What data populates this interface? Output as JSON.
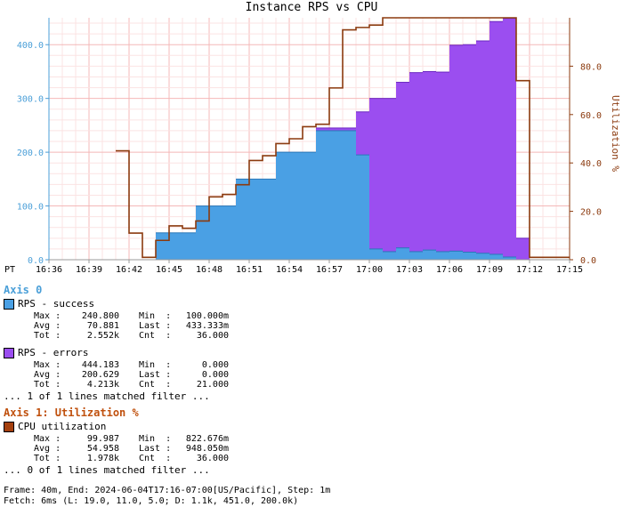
{
  "chart_data": {
    "type": "area",
    "title": "Instance RPS vs CPU",
    "x_axis": {
      "label": "PT",
      "ticks": [
        "16:36",
        "16:39",
        "16:42",
        "16:45",
        "16:48",
        "16:51",
        "16:54",
        "16:57",
        "17:00",
        "17:03",
        "17:06",
        "17:09",
        "17:12",
        "17:15"
      ],
      "range": [
        "16:36",
        "17:15"
      ]
    },
    "y_left": {
      "ticks": [
        "0.0",
        "100.0",
        "200.0",
        "300.0",
        "400.0"
      ],
      "range": [
        0,
        450
      ],
      "color": "#4a9fd8"
    },
    "y_right": {
      "label": "Utilization %",
      "ticks": [
        "0.0",
        "20.0",
        "40.0",
        "60.0",
        "80.0"
      ],
      "range": [
        0,
        100
      ],
      "color": "#8b3a0e"
    },
    "grid": true,
    "x_minutes": [
      0,
      1,
      2,
      3,
      4,
      5,
      6,
      7,
      8,
      9,
      10,
      11,
      12,
      13,
      14,
      15,
      16,
      17,
      18,
      19,
      20,
      21,
      22,
      23,
      24,
      25,
      26,
      27,
      28,
      29,
      30,
      31,
      32,
      33,
      34,
      35,
      36,
      37,
      38,
      39,
      40
    ],
    "series": [
      {
        "name": "RPS - success",
        "kind": "stacked-area",
        "color": "#4aa0e4",
        "values": [
          0,
          0,
          0,
          0,
          0,
          0,
          0,
          0,
          50,
          50,
          50,
          100,
          100,
          100,
          150,
          150,
          150,
          200,
          200,
          200,
          240,
          240,
          240,
          195,
          20,
          15,
          22,
          15,
          18,
          15,
          16,
          14,
          12,
          10,
          5,
          0,
          0,
          0,
          0,
          0,
          0
        ]
      },
      {
        "name": "RPS - errors",
        "kind": "stacked-area",
        "color": "#9b4ef0",
        "values": [
          0,
          0,
          0,
          0,
          0,
          0,
          0,
          0,
          0,
          0,
          0,
          0,
          0,
          0,
          0,
          0,
          0,
          0,
          0,
          0,
          5,
          5,
          5,
          80,
          280,
          285,
          308,
          333,
          332,
          334,
          383,
          386,
          395,
          433,
          444,
          40,
          0,
          0,
          0,
          0,
          0
        ]
      },
      {
        "name": "CPU utilization",
        "kind": "step-line",
        "axis": "right",
        "color": "#8b3a0e",
        "values": [
          null,
          null,
          null,
          null,
          null,
          45,
          11,
          1,
          8,
          14,
          13,
          16,
          26,
          27,
          31,
          41,
          43,
          48,
          50,
          55,
          56,
          71,
          95,
          96,
          97,
          100,
          100,
          100,
          100,
          100,
          100,
          100,
          100,
          100,
          100,
          74,
          1,
          1,
          1,
          2,
          1
        ]
      }
    ]
  },
  "legend": {
    "axis0_title": "Axis 0",
    "axis1_title": "Axis 1: Utilization %",
    "axis0_color": "#4a9fd8",
    "axis1_color": "#c0510e",
    "items": [
      {
        "name": "RPS - success",
        "color": "#4aa0e4",
        "max_label": "Max :",
        "max": "240.800",
        "min_label": "Min  :",
        "min": "100.000m",
        "avg_label": "Avg :",
        "avg": "70.881",
        "last_label": "Last :",
        "last": "433.333m",
        "tot_label": "Tot :",
        "tot": "2.552k",
        "cnt_label": "Cnt  :",
        "cnt": "36.000"
      },
      {
        "name": "RPS - errors",
        "color": "#9b4ef0",
        "max_label": "Max :",
        "max": "444.183",
        "min_label": "Min  :",
        "min": "0.000",
        "avg_label": "Avg :",
        "avg": "200.629",
        "last_label": "Last :",
        "last": "0.000",
        "tot_label": "Tot :",
        "tot": "4.213k",
        "cnt_label": "Cnt  :",
        "cnt": "21.000"
      },
      {
        "name": "CPU utilization",
        "color": "#a4400e",
        "max_label": "Max :",
        "max": "99.987",
        "min_label": "Min  :",
        "min": "822.676m",
        "avg_label": "Avg :",
        "avg": "54.958",
        "last_label": "Last :",
        "last": "948.050m",
        "tot_label": "Tot :",
        "tot": "1.978k",
        "cnt_label": "Cnt  :",
        "cnt": "36.000"
      }
    ],
    "filter_axis0": "... 1 of 1 lines matched filter ...",
    "filter_axis1": "... 0 of 1 lines matched filter ..."
  },
  "footer": {
    "frame_line": "Frame: 40m, End: 2024-06-04T17:16-07:00[US/Pacific], Step: 1m",
    "fetch_line": "Fetch: 6ms (L: 19.0, 11.0, 5.0; D: 1.1k, 451.0, 200.0k)"
  }
}
